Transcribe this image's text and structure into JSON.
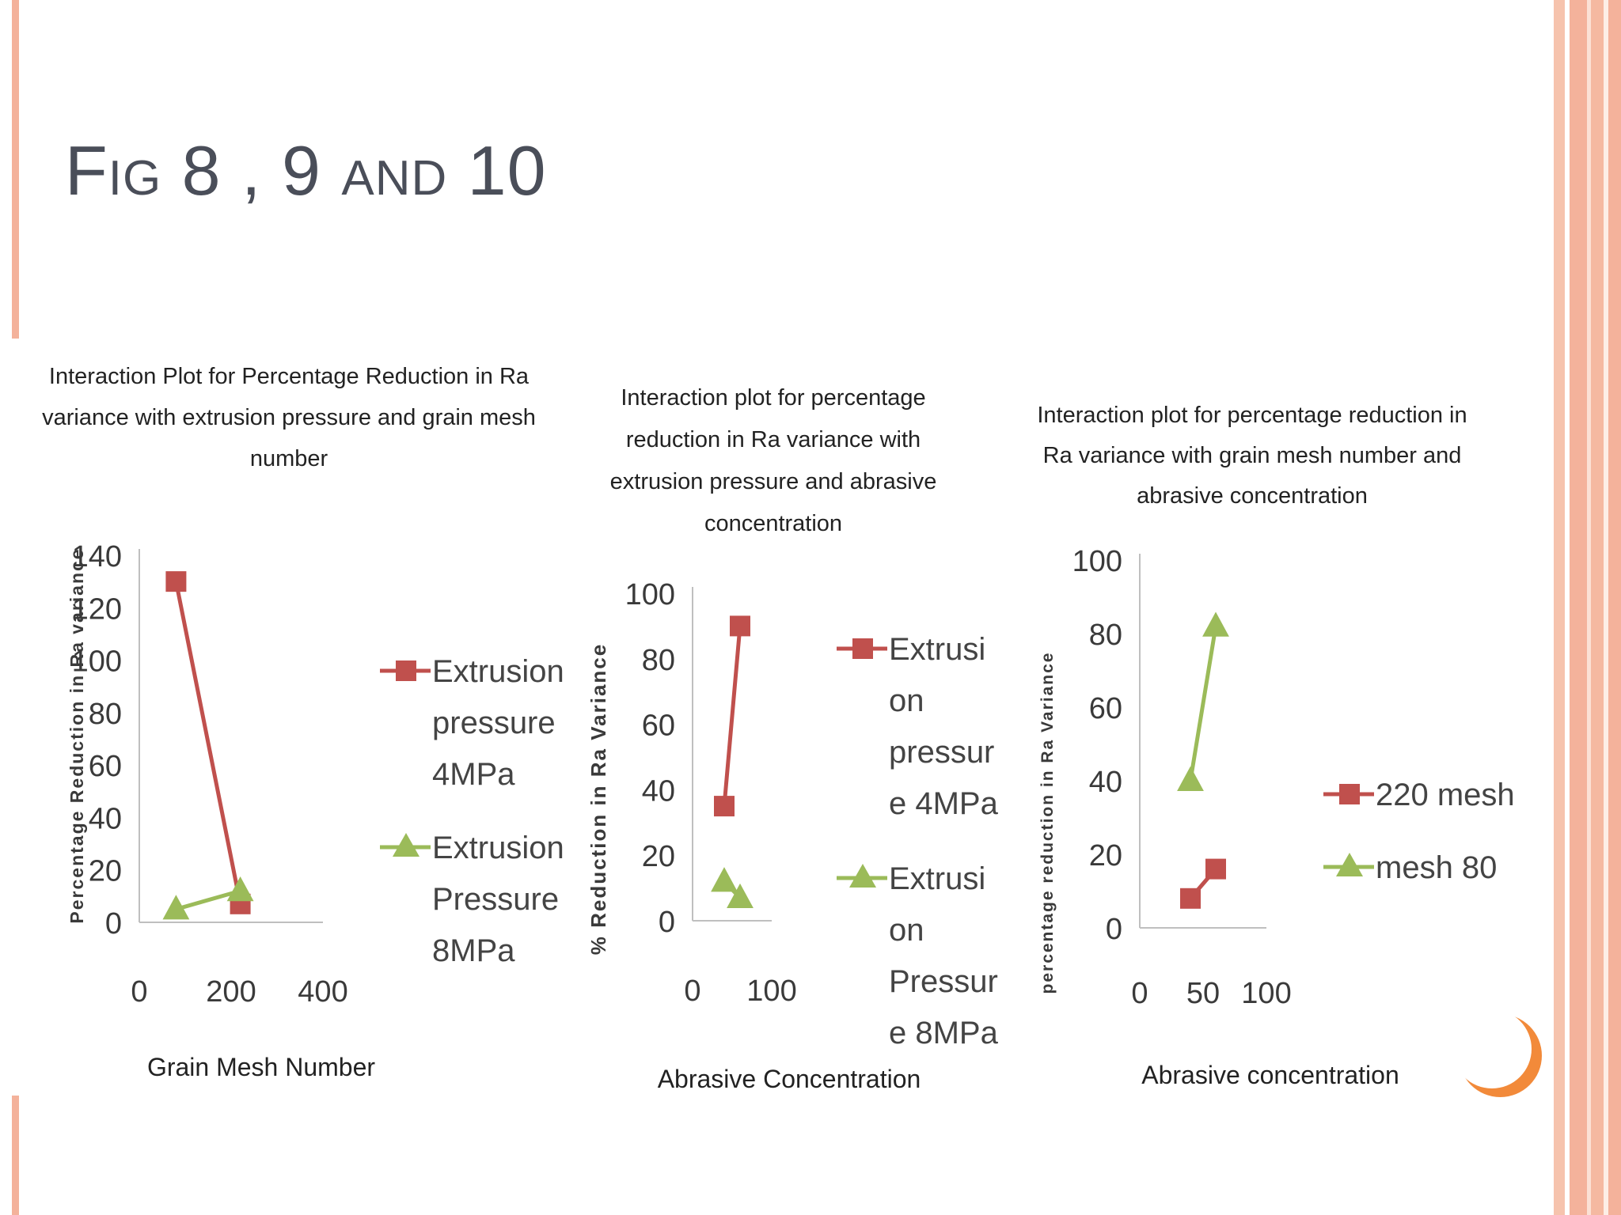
{
  "slide": {
    "title": "Fig 8 , 9 and 10",
    "colors": {
      "accent": "#f4b29b",
      "title_text": "#4a4e59",
      "circle": "#f28a3a"
    }
  },
  "chart_data": [
    {
      "type": "line",
      "title": "Interaction Plot for Percentage Reduction in Ra variance with extrusion pressure and grain mesh number",
      "title_lines": [
        "Interaction Plot for Percentage Reduction in Ra",
        "variance with extrusion pressure and grain mesh",
        "number"
      ],
      "xlabel": "Grain Mesh Number",
      "ylabel": "Percentage Reduction in Ra variance",
      "xlim": [
        0,
        400
      ],
      "ylim": [
        0,
        140
      ],
      "xticks": [
        0,
        200,
        400
      ],
      "yticks": [
        0,
        20,
        40,
        60,
        80,
        100,
        120,
        140
      ],
      "legend_position": "right",
      "series": [
        {
          "name": "Extrusion pressure 4MPa",
          "legend_lines": [
            "Extrusion",
            "pressure",
            "4MPa"
          ],
          "marker": "square",
          "color": "#c0504d",
          "x": [
            80,
            220
          ],
          "y": [
            130,
            7
          ]
        },
        {
          "name": "Extrusion Pressure 8MPa",
          "legend_lines": [
            "Extrusion",
            "Pressure",
            "8MPa"
          ],
          "marker": "triangle",
          "color": "#9bbb59",
          "x": [
            80,
            220
          ],
          "y": [
            5,
            12
          ]
        }
      ]
    },
    {
      "type": "line",
      "title": "Interaction plot for percentage reduction in Ra variance with extrusion pressure and abrasive concentration",
      "title_lines": [
        "Interaction plot for percentage",
        "reduction in Ra variance with",
        "extrusion pressure and abrasive",
        "concentration"
      ],
      "xlabel": "Abrasive Concentration",
      "ylabel": "% Reduction in Ra Variance",
      "xlim": [
        0,
        100
      ],
      "ylim": [
        0,
        100
      ],
      "xticks": [
        0,
        100
      ],
      "yticks": [
        0,
        20,
        40,
        60,
        80,
        100
      ],
      "legend_position": "right",
      "series": [
        {
          "name": "Extrusion pressure 4MPa",
          "legend_lines": [
            "Extrusi",
            "on",
            "pressur",
            "e 4MPa"
          ],
          "marker": "square",
          "color": "#c0504d",
          "x": [
            40,
            60
          ],
          "y": [
            35,
            90
          ]
        },
        {
          "name": "Extrusion Pressure 8MPa",
          "legend_lines": [
            "Extrusi",
            "on",
            "Pressur",
            "e 8MPa"
          ],
          "marker": "triangle",
          "color": "#9bbb59",
          "x": [
            40,
            60
          ],
          "y": [
            12,
            7
          ]
        }
      ]
    },
    {
      "type": "line",
      "title": "Interaction plot for percentage reduction in Ra variance with grain mesh number and abrasive concentration",
      "title_lines": [
        "Interaction plot for percentage reduction in",
        "Ra variance with grain mesh number and",
        "abrasive concentration"
      ],
      "xlabel": "Abrasive concentration",
      "ylabel": "percentage reduction in Ra Variance",
      "xlim": [
        0,
        100
      ],
      "ylim": [
        0,
        100
      ],
      "xticks": [
        0,
        50,
        100
      ],
      "yticks": [
        0,
        20,
        40,
        60,
        80,
        100
      ],
      "legend_position": "right",
      "series": [
        {
          "name": "220 mesh",
          "legend_lines": [
            "220 mesh"
          ],
          "marker": "square",
          "color": "#c0504d",
          "x": [
            40,
            60
          ],
          "y": [
            8,
            16
          ]
        },
        {
          "name": "mesh 80",
          "legend_lines": [
            "mesh 80"
          ],
          "marker": "triangle",
          "color": "#9bbb59",
          "x": [
            40,
            60
          ],
          "y": [
            40,
            82
          ]
        }
      ]
    }
  ]
}
